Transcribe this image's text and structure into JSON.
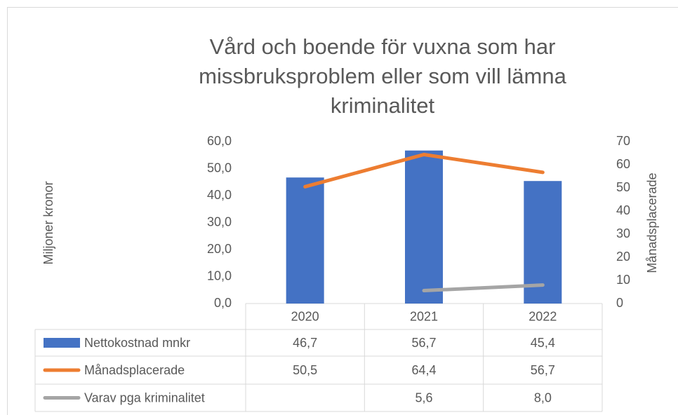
{
  "chart_data": {
    "type": "bar-line-table",
    "title": "Vård och boende för vuxna som har missbruksproblem eller som vill lämna kriminalitet",
    "ylabel": "Miljoner kronor",
    "y2label": "Månadsplacerade",
    "categories": [
      "2020",
      "2021",
      "2022"
    ],
    "series": [
      {
        "name": "Nettokostnad mnkr",
        "type": "bar",
        "color": "#4472c4",
        "values": [
          46.7,
          56.7,
          45.4
        ],
        "value_labels": [
          "46,7",
          "56,7",
          "45,4"
        ]
      },
      {
        "name": "Månadsplacerade",
        "type": "line",
        "axis": "y2",
        "color": "#ed7d31",
        "values": [
          50.5,
          64.4,
          56.7
        ],
        "value_labels": [
          "50,5",
          "64,4",
          "56,7"
        ]
      },
      {
        "name": "Varav pga kriminalitet",
        "type": "line",
        "axis": "y2",
        "color": "#a5a5a5",
        "values": [
          null,
          5.6,
          8.0
        ],
        "value_labels": [
          null,
          "5,6",
          "8,0"
        ]
      }
    ],
    "ylim": [
      0,
      60
    ],
    "yticks": [
      {
        "value": 0,
        "label": "0,0"
      },
      {
        "value": 10,
        "label": "10,0"
      },
      {
        "value": 20,
        "label": "20,0"
      },
      {
        "value": 30,
        "label": "30,0"
      },
      {
        "value": 40,
        "label": "40,0"
      },
      {
        "value": 50,
        "label": "50,0"
      },
      {
        "value": 60,
        "label": "60,0"
      }
    ],
    "y2lim": [
      0,
      70
    ],
    "y2ticks": [
      0,
      10,
      20,
      30,
      40,
      50,
      60,
      70
    ]
  }
}
